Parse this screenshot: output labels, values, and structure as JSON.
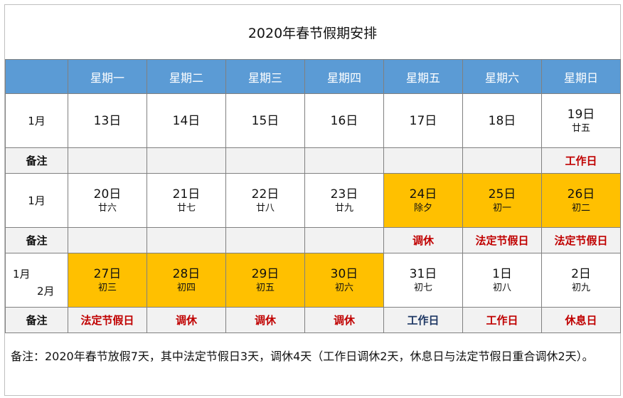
{
  "title": "2020年春节假期安排",
  "header": {
    "weekdays": [
      "星期一",
      "星期二",
      "星期三",
      "星期四",
      "星期五",
      "星期六",
      "星期日"
    ]
  },
  "colors": {
    "header_bg": "#5b9bd5",
    "holiday_bg": "#ffc000",
    "note_red": "#c00000",
    "note_blue": "#1f3864"
  },
  "weeks": [
    {
      "month_label": "1月",
      "days": [
        {
          "date": "13日",
          "lunar": ""
        },
        {
          "date": "14日",
          "lunar": ""
        },
        {
          "date": "15日",
          "lunar": ""
        },
        {
          "date": "16日",
          "lunar": ""
        },
        {
          "date": "17日",
          "lunar": ""
        },
        {
          "date": "18日",
          "lunar": ""
        },
        {
          "date": "19日",
          "lunar": "廿五"
        }
      ],
      "note_label": "备注",
      "notes": [
        "",
        "",
        "",
        "",
        "",
        "",
        "工作日"
      ]
    },
    {
      "month_label": "1月",
      "days": [
        {
          "date": "20日",
          "lunar": "廿六"
        },
        {
          "date": "21日",
          "lunar": "廿七"
        },
        {
          "date": "22日",
          "lunar": "廿八"
        },
        {
          "date": "23日",
          "lunar": "廿九"
        },
        {
          "date": "24日",
          "lunar": "除夕"
        },
        {
          "date": "25日",
          "lunar": "初一"
        },
        {
          "date": "26日",
          "lunar": "初二"
        }
      ],
      "note_label": "备注",
      "notes": [
        "",
        "",
        "",
        "",
        "调休",
        "法定节假日",
        "法定节假日"
      ]
    },
    {
      "month_label_a": "1月",
      "month_label_b": "2月",
      "days": [
        {
          "date": "27日",
          "lunar": "初三"
        },
        {
          "date": "28日",
          "lunar": "初四"
        },
        {
          "date": "29日",
          "lunar": "初五"
        },
        {
          "date": "30日",
          "lunar": "初六"
        },
        {
          "date": "31日",
          "lunar": "初七"
        },
        {
          "date": "1日",
          "lunar": "初八"
        },
        {
          "date": "2日",
          "lunar": "初九"
        }
      ],
      "note_label": "备注",
      "notes": [
        "法定节假日",
        "调休",
        "调休",
        "调休",
        "工作日",
        "工作日",
        "休息日"
      ]
    }
  ],
  "footer": "备注：2020年春节放假7天，其中法定节假日3天，调休4天（工作日调休2天，休息日与法定节假日重合调休2天）。"
}
